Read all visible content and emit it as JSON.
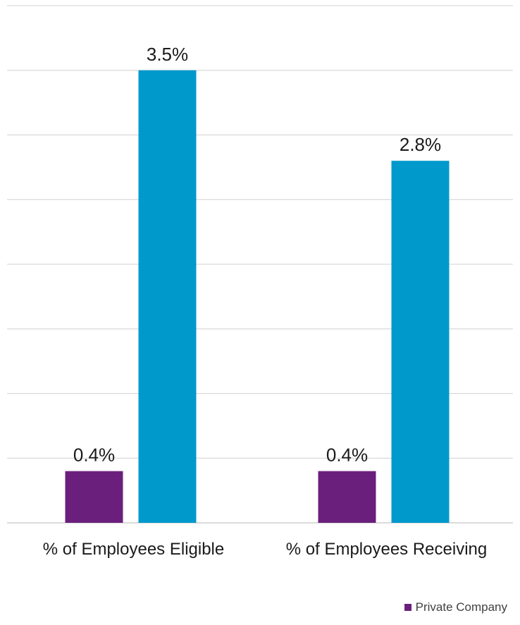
{
  "chart_data": {
    "type": "bar",
    "categories": [
      "% of Employees Eligible",
      "% of Employees Receiving"
    ],
    "series": [
      {
        "name": "Private Company",
        "values": [
          0.4,
          0.4
        ],
        "labels": [
          "0.4%",
          "0.4%"
        ],
        "color": "#6b1f7c"
      },
      {
        "values": [
          3.5,
          2.8
        ],
        "labels": [
          "3.5%",
          "2.8%"
        ],
        "color": "#0099cc"
      }
    ],
    "ylim": [
      0,
      4
    ],
    "grid": true,
    "legend_position": "bottom-right",
    "title": "",
    "xlabel": "",
    "ylabel": ""
  }
}
